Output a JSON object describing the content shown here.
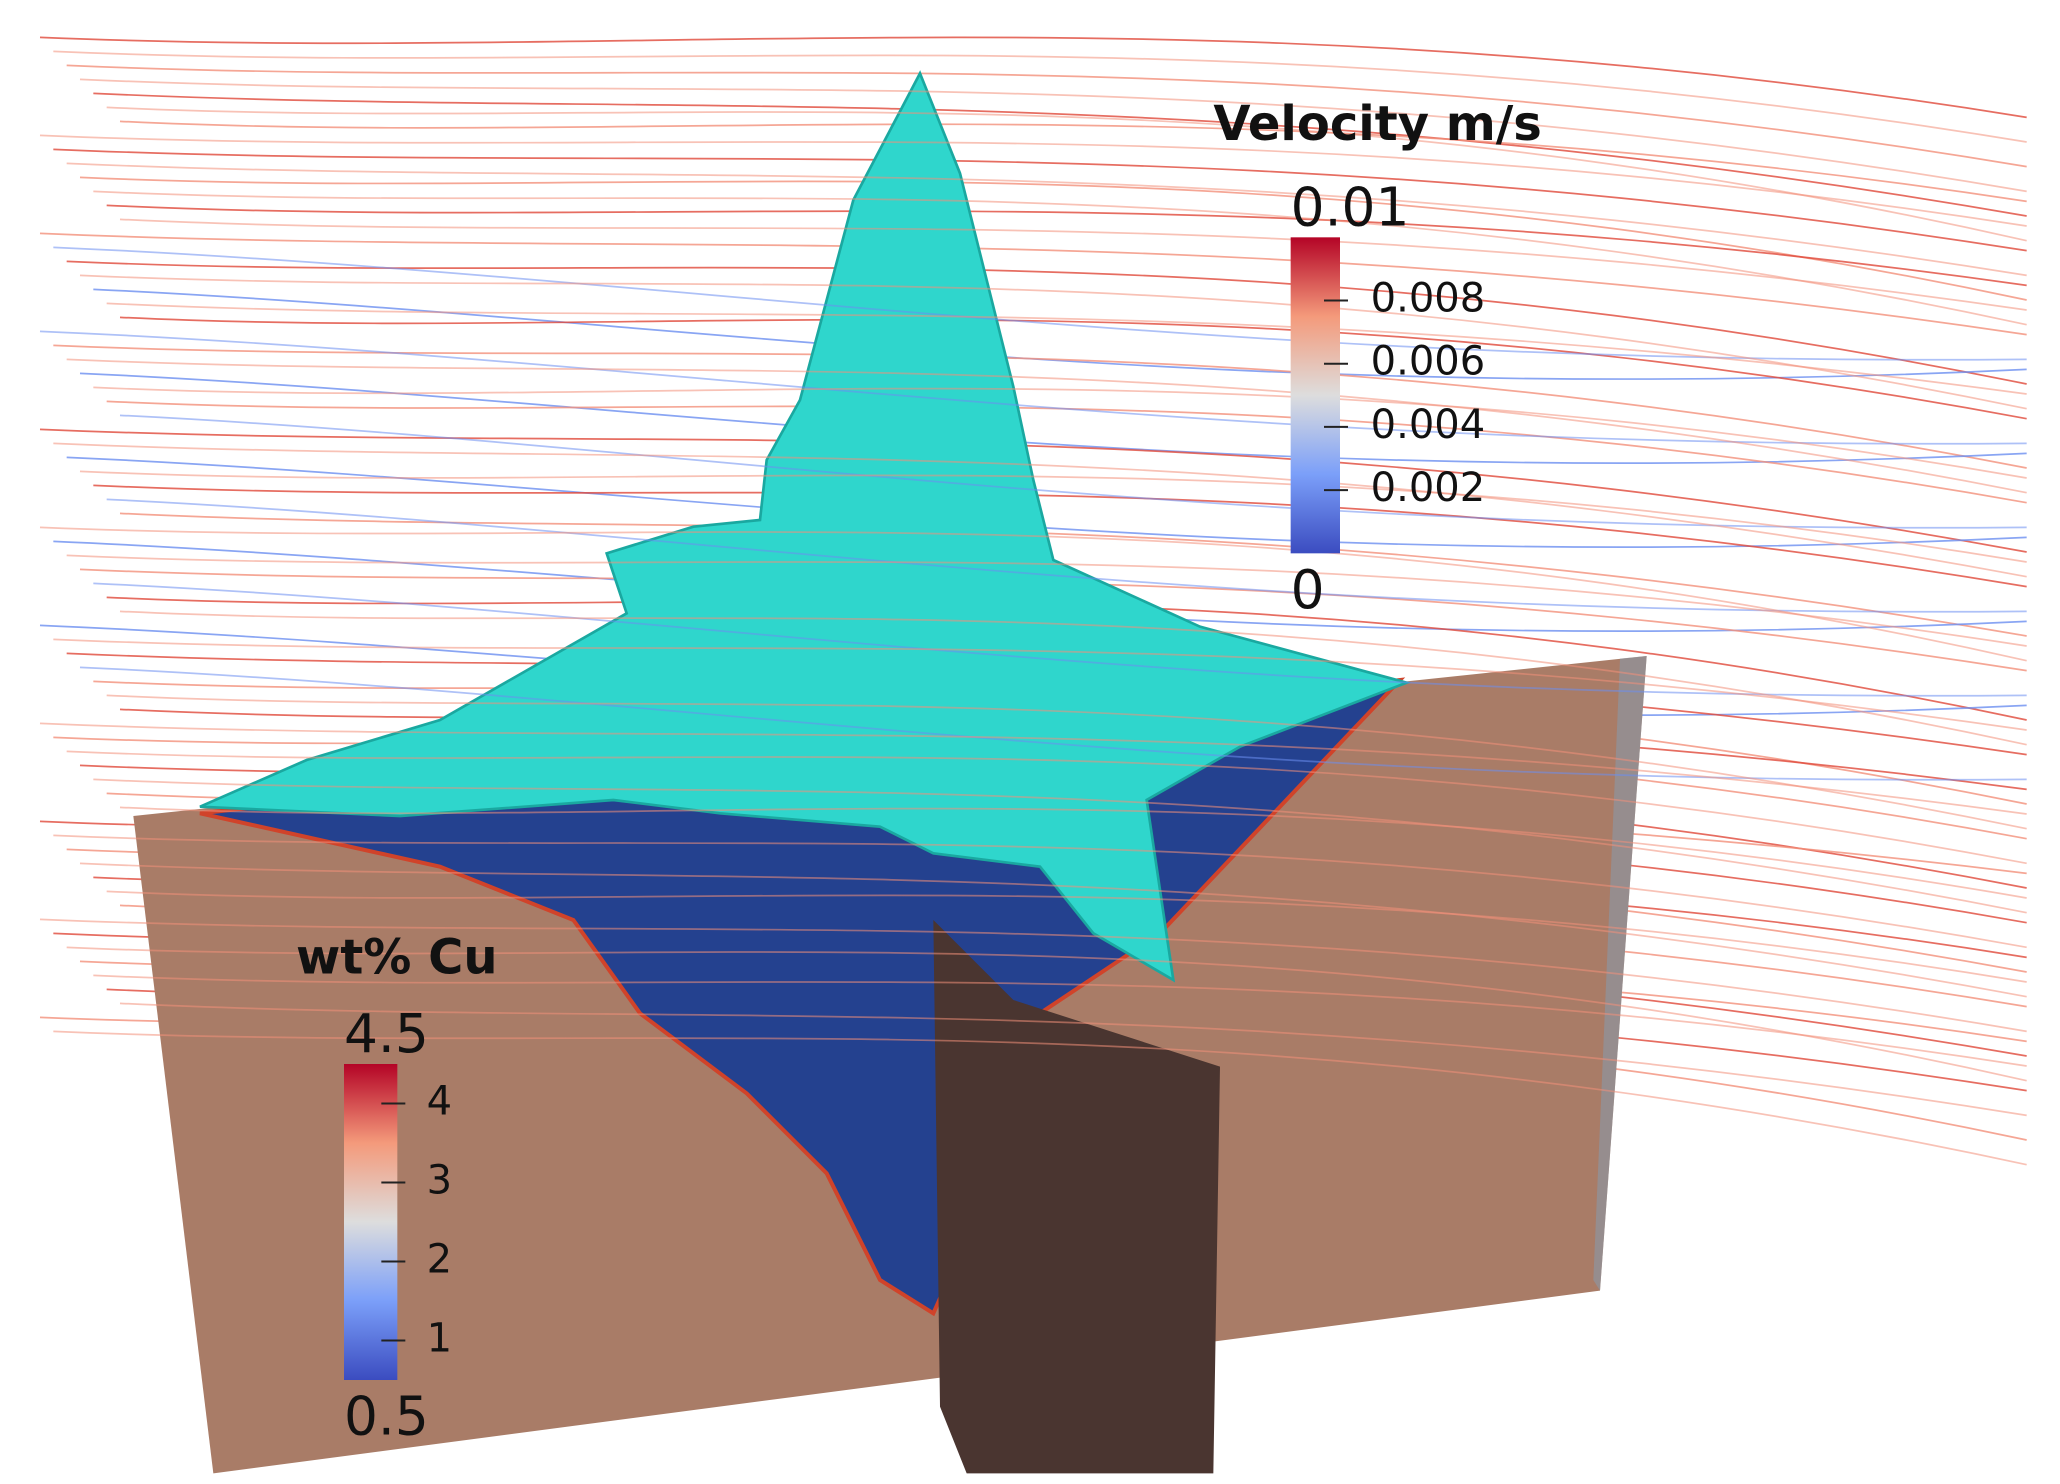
{
  "colorbars": [
    {
      "title": "Velocity m/s",
      "range": [
        0,
        0.01
      ],
      "ticks": [
        0.002,
        0.004,
        0.006,
        0.008
      ]
    },
    {
      "title": "wt% Cu",
      "range": [
        0.5,
        4.5
      ],
      "ticks": [
        1,
        2,
        3,
        4
      ]
    }
  ]
}
